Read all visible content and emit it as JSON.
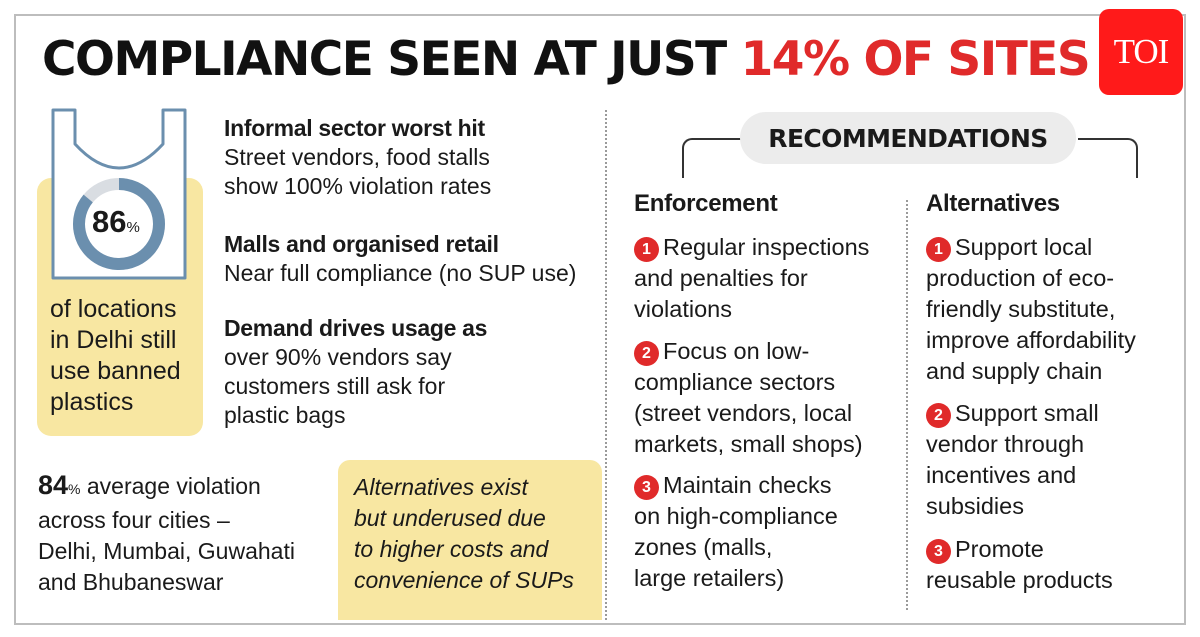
{
  "headline": {
    "part1": "COMPLIANCE SEEN AT JUST ",
    "part2": "14% OF SITES"
  },
  "logo": {
    "text": "TOI"
  },
  "stat": {
    "value": "86",
    "unit": "%",
    "ring_fraction": 0.86,
    "caption": [
      "of locations",
      "in Delhi still",
      "use banned",
      "plastics"
    ]
  },
  "findings": [
    {
      "heading": "Informal sector worst hit",
      "lines": [
        "Street vendors, food stalls",
        "show 100% violation rates"
      ]
    },
    {
      "heading": "Malls and organised retail",
      "lines": [
        "Near full compliance (no SUP use)"
      ]
    },
    {
      "heading": "Demand drives usage as",
      "lines": [
        "over 90% vendors say",
        "customers still ask for",
        "plastic bags"
      ]
    }
  ],
  "average": {
    "value": "84",
    "unit": "%",
    "line1_rest": " average violation",
    "lines": [
      "across four cities –",
      "Delhi, Mumbai, Guwahati",
      "and Bhubaneswar"
    ]
  },
  "alternatives_note": [
    "Alternatives exist",
    "but underused due",
    "to higher costs and",
    "convenience of SUPs"
  ],
  "recommendations": {
    "title": "RECOMMENDATIONS",
    "enforcement": {
      "heading": "Enforcement",
      "items": [
        {
          "num": "1",
          "lines": [
            "Regular inspections",
            "and penalties for",
            "violations"
          ]
        },
        {
          "num": "2",
          "lines": [
            "Focus on low-",
            "compliance sectors",
            "(street vendors, local",
            "markets, small shops)"
          ]
        },
        {
          "num": "3",
          "lines": [
            "Maintain checks",
            "on high-compliance",
            "zones (malls,",
            "large retailers)"
          ]
        }
      ]
    },
    "alternatives": {
      "heading": "Alternatives",
      "items": [
        {
          "num": "1",
          "lines": [
            "Support local",
            "production of eco-",
            "friendly substitute,",
            "improve affordability",
            "and supply chain"
          ]
        },
        {
          "num": "2",
          "lines": [
            "Support small",
            "vendor through",
            "incentives and",
            "subsidies"
          ]
        },
        {
          "num": "3",
          "lines": [
            "Promote",
            "reusable products"
          ]
        }
      ]
    }
  },
  "colors": {
    "accent_red": "#e02a2a",
    "highlight_yellow": "#f8e7a2",
    "ring_blue": "#6b8fae",
    "ring_gray": "#d9dde2"
  }
}
